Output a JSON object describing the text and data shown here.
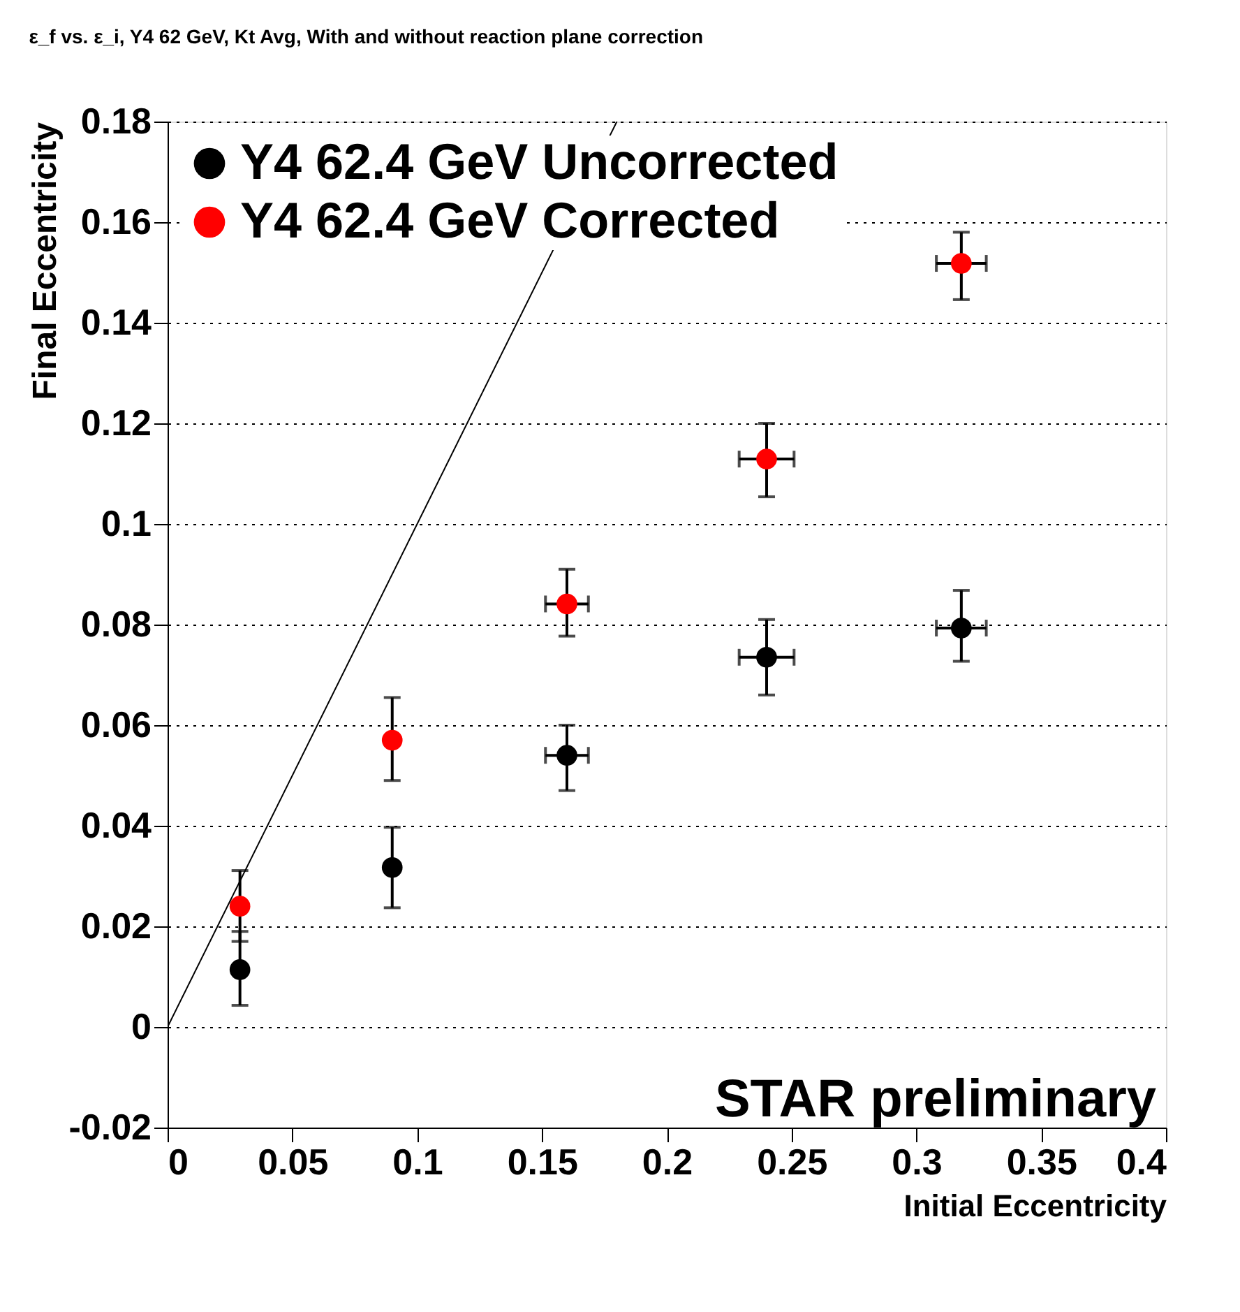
{
  "chart_data": {
    "type": "scatter",
    "title": "ε_f vs. ε_i, Y4 62 GeV, Kt Avg, With and without reaction plane correction",
    "xlabel": "Initial Eccentricity",
    "ylabel": "Final Eccentricity",
    "xlim": [
      0,
      0.4
    ],
    "xticks": [
      0,
      0.05,
      0.1,
      0.15,
      0.2,
      0.25,
      0.3,
      0.35,
      0.4
    ],
    "ylim": [
      -0.02,
      0.18
    ],
    "yticks": [
      -0.02,
      0,
      0.02,
      0.04,
      0.06,
      0.08,
      0.1,
      0.12,
      0.14,
      0.16,
      0.18
    ],
    "grid": "y",
    "legend": "top left",
    "marker": "circle",
    "annotations": [
      "STAR preliminary"
    ],
    "series": [
      {
        "name": "Y4 62.4 GeV Uncorrected",
        "color": "#000000",
        "x": [
          0.029,
          0.09,
          0.16,
          0.24,
          0.318
        ],
        "values": [
          0.0114,
          0.0317,
          0.054,
          0.0735,
          0.0793
        ],
        "errors": [
          [
            0.0043,
            0.019
          ],
          [
            0.0237,
            0.0397
          ],
          [
            0.047,
            0.06
          ],
          [
            0.066,
            0.081
          ],
          [
            0.0727,
            0.0868
          ]
        ],
        "xerrors": [
          null,
          null,
          0.0086,
          0.011,
          0.01
        ]
      },
      {
        "name": "Y4 62.4 GeV Corrected",
        "color": "#ff0000",
        "x": [
          0.029,
          0.09,
          0.16,
          0.24,
          0.318
        ],
        "values": [
          0.024,
          0.057,
          0.0841,
          0.1129,
          0.1518
        ],
        "errors": [
          [
            0.017,
            0.0311
          ],
          [
            0.049,
            0.0655
          ],
          [
            0.0777,
            0.091
          ],
          [
            0.1054,
            0.12
          ],
          [
            0.1446,
            0.158
          ]
        ],
        "xerrors": [
          null,
          null,
          0.0086,
          0.011,
          0.01
        ]
      },
      {
        "type": "line",
        "marker": "none",
        "color": "#000000",
        "x": [
          0,
          0.18
        ],
        "values": [
          0,
          0.18
        ]
      }
    ]
  }
}
